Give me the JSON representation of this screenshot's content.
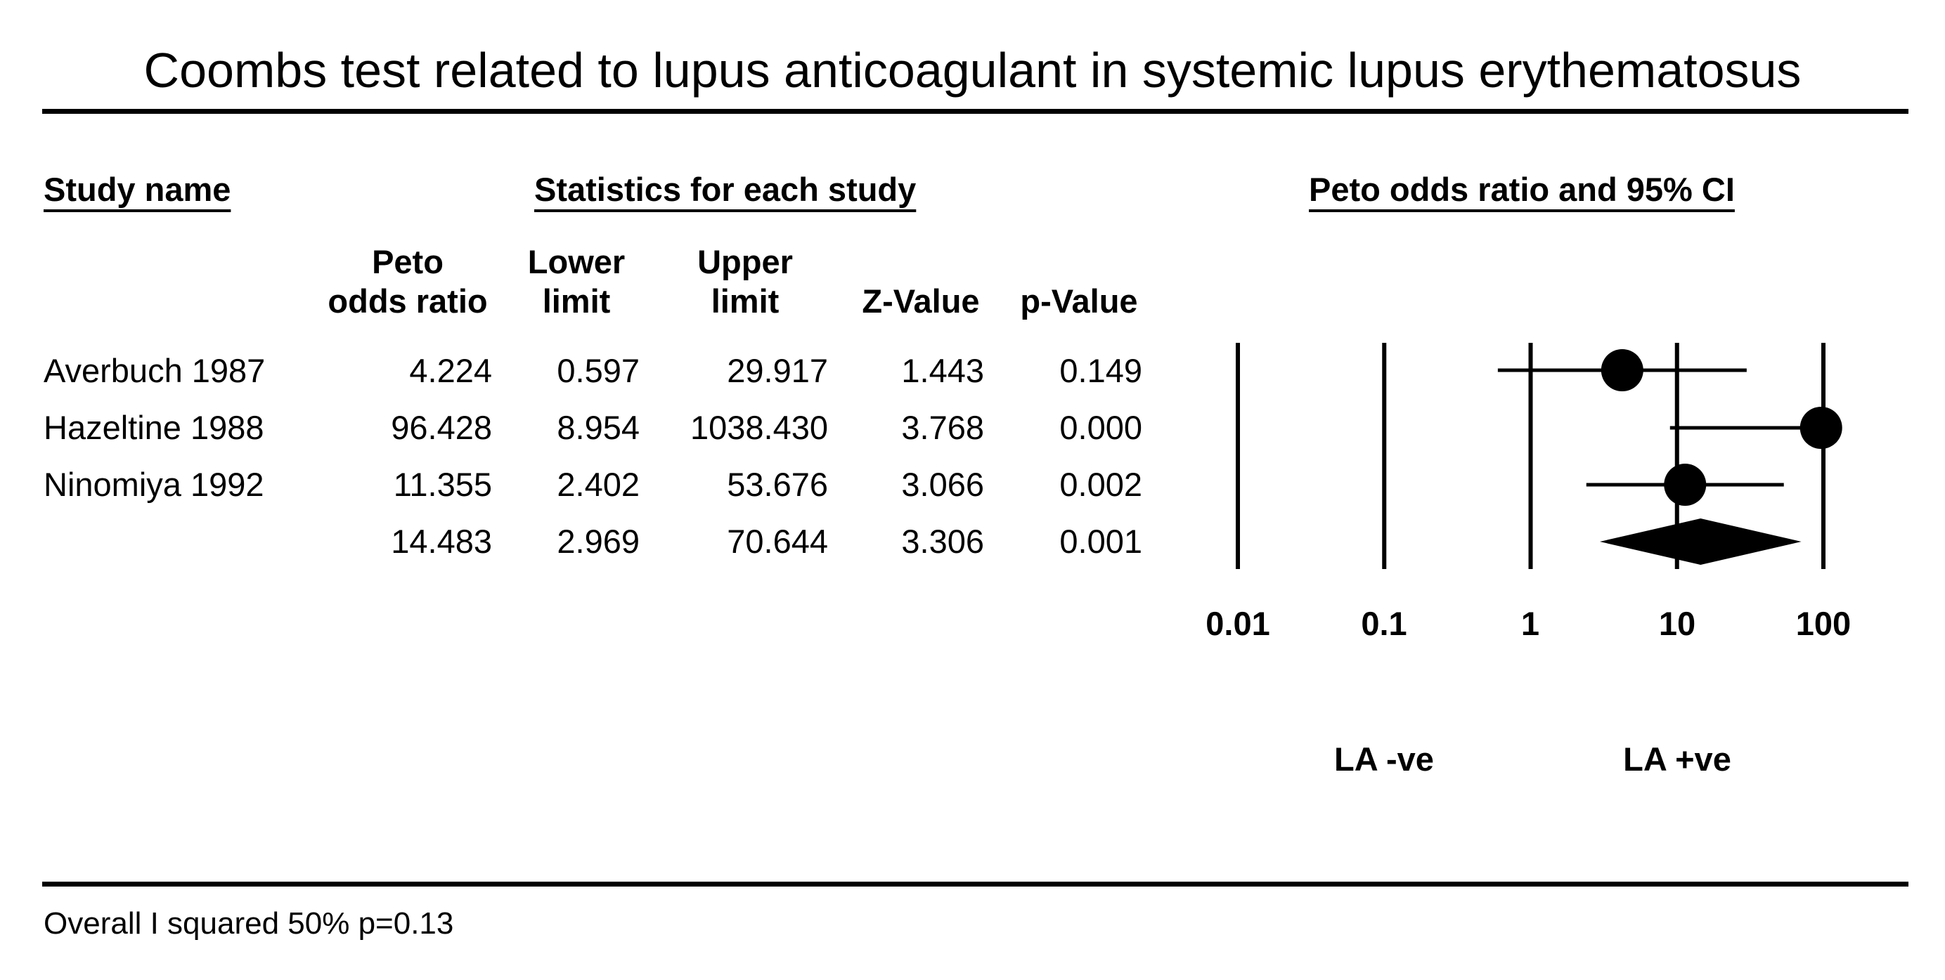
{
  "title": "Coombs test related to lupus anticoagulant in systemic lupus erythematosus",
  "headers": {
    "study": "Study name",
    "stats": "Statistics for each study",
    "plot": "Peto odds ratio and 95% CI"
  },
  "columns": [
    {
      "line1": "Peto",
      "line2": "odds ratio"
    },
    {
      "line1": "Lower",
      "line2": "limit"
    },
    {
      "line1": "Upper",
      "line2": "limit"
    },
    {
      "line1": "",
      "line2": "Z-Value"
    },
    {
      "line1": "",
      "line2": "p-Value"
    }
  ],
  "rows": [
    {
      "study": "Averbuch 1987",
      "or": "4.224",
      "lower": "0.597",
      "upper": "29.917",
      "z": "1.443",
      "p": "0.149"
    },
    {
      "study": "Hazeltine 1988",
      "or": "96.428",
      "lower": "8.954",
      "upper": "1038.430",
      "z": "3.768",
      "p": "0.000"
    },
    {
      "study": "Ninomiya 1992",
      "or": "11.355",
      "lower": "2.402",
      "upper": "53.676",
      "z": "3.066",
      "p": "0.002"
    },
    {
      "study": "",
      "or": "14.483",
      "lower": "2.969",
      "upper": "70.644",
      "z": "3.306",
      "p": "0.001"
    }
  ],
  "axis": {
    "ticks": [
      "0.01",
      "0.1",
      "1",
      "10",
      "100"
    ],
    "left_label": "LA -ve",
    "right_label": "LA +ve"
  },
  "footer": "Overall I squared 50% p=0.13",
  "chart_data": {
    "type": "forest",
    "scale": "log",
    "xlim": [
      0.01,
      100
    ],
    "xticks": [
      0.01,
      0.1,
      1,
      10,
      100
    ],
    "studies": [
      {
        "name": "Averbuch 1987",
        "or": 4.224,
        "lower": 0.597,
        "upper": 29.917
      },
      {
        "name": "Hazeltine 1988",
        "or": 96.428,
        "lower": 8.954,
        "upper": 1038.43
      },
      {
        "name": "Ninomiya 1992",
        "or": 11.355,
        "lower": 2.402,
        "upper": 53.676
      }
    ],
    "summary": {
      "or": 14.483,
      "lower": 2.969,
      "upper": 70.644
    }
  }
}
